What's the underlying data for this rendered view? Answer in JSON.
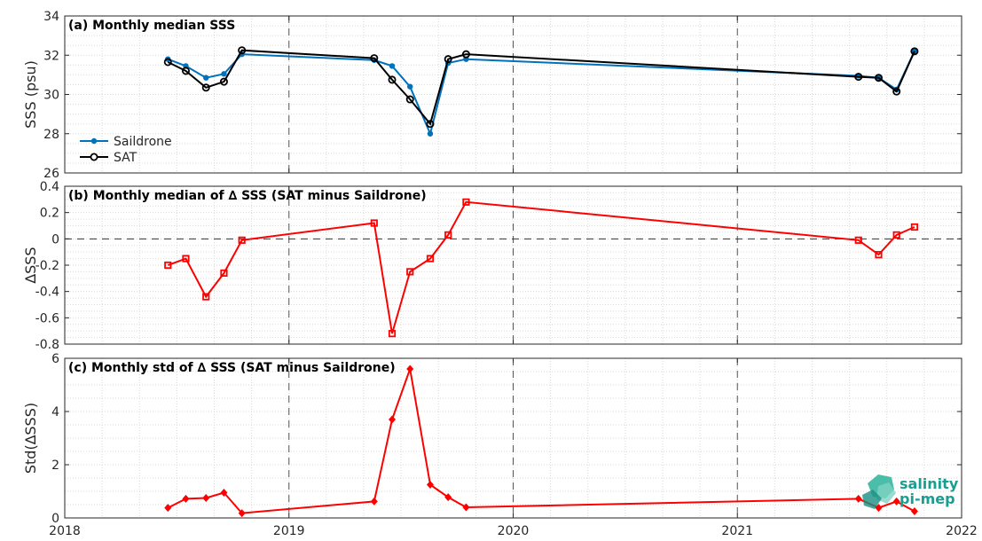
{
  "chart_data": [
    {
      "type": "line",
      "title": "(a) Monthly median SSS",
      "ylabel": "SSS (psu)",
      "xlim": [
        2018,
        2022
      ],
      "ylim": [
        26,
        34
      ],
      "yticks": [
        26,
        28,
        30,
        32,
        34
      ],
      "grid": true,
      "legend_position": "bottom-left",
      "x": [
        2018.46,
        2018.54,
        2018.63,
        2018.71,
        2018.79,
        2019.38,
        2019.46,
        2019.54,
        2019.63,
        2019.71,
        2019.79,
        2021.54,
        2021.63,
        2021.71,
        2021.79
      ],
      "series": [
        {
          "name": "Saildrone",
          "color": "#0072BD",
          "marker": "dot",
          "values": [
            31.8,
            31.45,
            30.85,
            31.05,
            32.05,
            31.75,
            31.45,
            30.4,
            28.0,
            31.6,
            31.8,
            30.95,
            30.85,
            30.25,
            32.2
          ]
        },
        {
          "name": "SAT",
          "color": "#000000",
          "marker": "circle",
          "values": [
            31.65,
            31.2,
            30.35,
            30.65,
            32.25,
            31.85,
            30.75,
            29.75,
            28.5,
            31.8,
            32.05,
            30.9,
            30.85,
            30.15,
            32.2
          ]
        }
      ]
    },
    {
      "type": "line",
      "title": "(b) Monthly median of ∆ SSS (SAT minus Saildrone)",
      "ylabel": "∆SSS",
      "xlim": [
        2018,
        2022
      ],
      "ylim": [
        -0.8,
        0.4
      ],
      "yticks": [
        -0.8,
        -0.6,
        -0.4,
        -0.2,
        0,
        0.2,
        0.4
      ],
      "grid": true,
      "zero_line": true,
      "x": [
        2018.46,
        2018.54,
        2018.63,
        2018.71,
        2018.79,
        2019.38,
        2019.46,
        2019.54,
        2019.63,
        2019.71,
        2019.79,
        2021.54,
        2021.63,
        2021.71,
        2021.79
      ],
      "series": [
        {
          "color": "#FF0000",
          "marker": "square",
          "values": [
            -0.2,
            -0.15,
            -0.44,
            -0.26,
            -0.01,
            0.12,
            -0.72,
            -0.25,
            -0.15,
            0.03,
            0.28,
            -0.01,
            -0.12,
            0.03,
            0.09
          ]
        }
      ]
    },
    {
      "type": "line",
      "title": "(c) Monthly std of ∆ SSS (SAT minus Saildrone)",
      "ylabel": "Std(∆SSS)",
      "xlim": [
        2018,
        2022
      ],
      "ylim": [
        0,
        6
      ],
      "yticks": [
        0,
        2,
        4,
        6
      ],
      "xticks": [
        2018,
        2019,
        2020,
        2021,
        2022
      ],
      "grid": true,
      "x": [
        2018.46,
        2018.54,
        2018.63,
        2018.71,
        2018.79,
        2019.38,
        2019.46,
        2019.54,
        2019.63,
        2019.71,
        2019.79,
        2021.54,
        2021.63,
        2021.71,
        2021.79
      ],
      "series": [
        {
          "color": "#FF0000",
          "marker": "diamond",
          "values": [
            0.38,
            0.72,
            0.75,
            0.95,
            0.18,
            0.62,
            3.7,
            5.6,
            1.25,
            0.78,
            0.4,
            0.72,
            0.38,
            0.62,
            0.25
          ]
        }
      ]
    }
  ],
  "logo": {
    "line1": "salinity",
    "line2": "pi-mep"
  }
}
